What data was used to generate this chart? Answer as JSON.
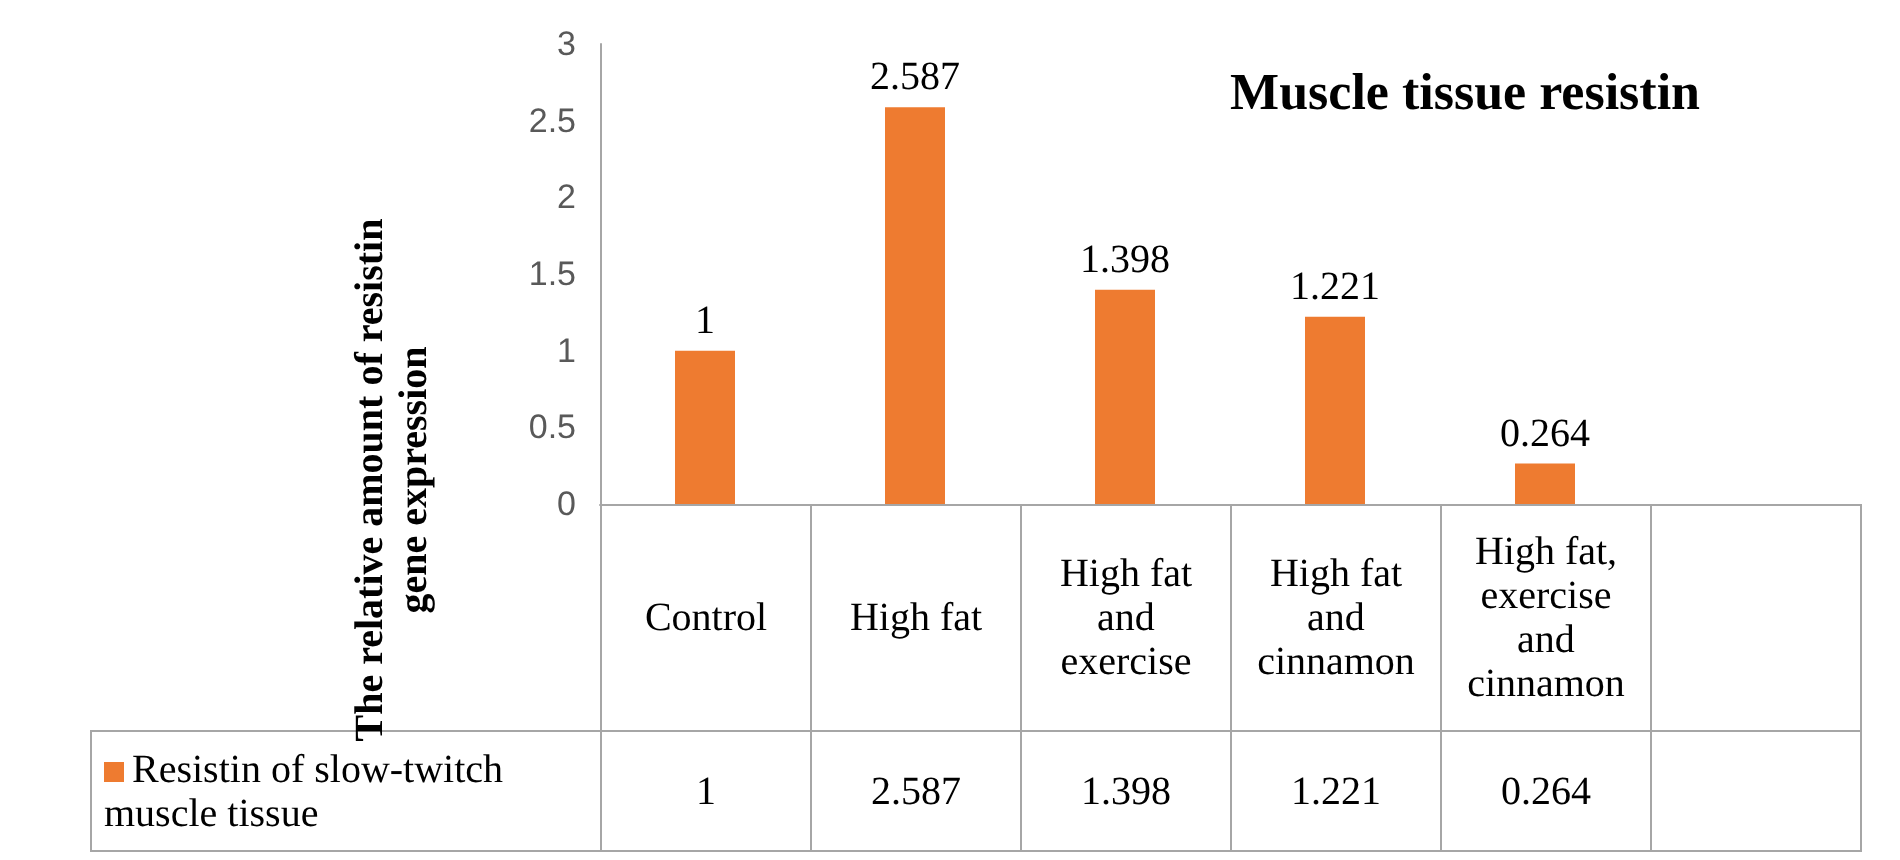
{
  "chart_data": {
    "type": "bar",
    "title": "Muscle tissue resistin",
    "ylabel": "The relative amount of resistin gene expression",
    "categories": [
      "Control",
      "High fat",
      "High fat and exercise",
      "High fat and cinnamon",
      "High fat, exercise and cinnamon",
      null
    ],
    "series": [
      {
        "name": "Resistin of slow-twitch muscle tissue",
        "color": "#ee7b30",
        "values": [
          1,
          2.587,
          1.398,
          1.221,
          0.264,
          null
        ],
        "value_labels": [
          "1",
          "2.587",
          "1.398",
          "1.221",
          "0.264",
          null
        ]
      }
    ],
    "annotations": [
      "1",
      "2.587",
      "1.398",
      "1.221",
      "0.264"
    ],
    "ylim": [
      0,
      3
    ],
    "yticks": [
      0,
      0.5,
      1,
      1.5,
      2,
      2.5,
      3
    ],
    "legend": "bottom left"
  }
}
